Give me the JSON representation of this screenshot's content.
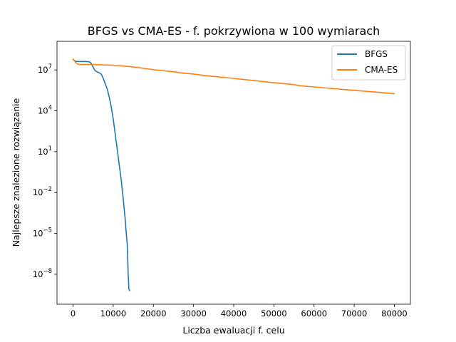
{
  "chart_data": {
    "type": "line",
    "title": "BFGS vs CMA-ES - f. pokrzywiona w 100 wymiarach",
    "xlabel": "Liczba ewaluacji f. celu",
    "ylabel": "Najlepsze znalezione rozwiązanie",
    "x_scale": "linear",
    "y_scale": "log",
    "xlim": [
      -4000,
      84000
    ],
    "ylim_log10": [
      -10.2,
      9.1
    ],
    "grid": false,
    "legend_position": "top-right",
    "x_ticks": [
      0,
      10000,
      20000,
      30000,
      40000,
      50000,
      60000,
      70000,
      80000
    ],
    "x_tick_labels": [
      "0",
      "10000",
      "20000",
      "30000",
      "40000",
      "50000",
      "60000",
      "70000",
      "80000"
    ],
    "y_ticks_log10": [
      7,
      4,
      1,
      -2,
      -5,
      -8
    ],
    "y_tick_labels": [
      {
        "base": "10",
        "exp": "7"
      },
      {
        "base": "10",
        "exp": "4"
      },
      {
        "base": "10",
        "exp": "1"
      },
      {
        "base": "10",
        "exp": "−2"
      },
      {
        "base": "10",
        "exp": "−5"
      },
      {
        "base": "10",
        "exp": "−8"
      }
    ],
    "series": [
      {
        "name": "BFGS",
        "color": "#1f77b4",
        "x": [
          0,
          500,
          1000,
          2000,
          3000,
          4000,
          4500,
          5000,
          5500,
          6000,
          6500,
          7000,
          7500,
          8000,
          8500,
          9000,
          9500,
          10000,
          10500,
          11000,
          11500,
          12000,
          12500,
          13000,
          13200,
          13500,
          13700,
          13900,
          14100
        ],
        "y_log10": [
          7.78,
          7.65,
          7.62,
          7.62,
          7.62,
          7.6,
          7.5,
          7.2,
          6.95,
          6.85,
          6.8,
          6.7,
          6.4,
          6.0,
          5.6,
          5.0,
          4.3,
          3.4,
          2.3,
          1.2,
          0.0,
          -1.1,
          -2.5,
          -4.0,
          -4.8,
          -5.8,
          -7.9,
          -9.1,
          -9.2
        ]
      },
      {
        "name": "CMA-ES",
        "color": "#ff7f0e",
        "x": [
          0,
          500,
          1000,
          1500,
          2000,
          3000,
          5000,
          7000,
          10000,
          12000,
          14000,
          16000,
          18000,
          20000,
          22000,
          24000,
          26000,
          28000,
          30000,
          32000,
          35000,
          40000,
          45000,
          50000,
          55000,
          57000,
          60000,
          65000,
          70000,
          75000,
          80000
        ],
        "y_log10": [
          7.8,
          7.6,
          7.45,
          7.4,
          7.4,
          7.4,
          7.4,
          7.38,
          7.35,
          7.3,
          7.25,
          7.18,
          7.1,
          7.02,
          6.96,
          6.9,
          6.82,
          6.75,
          6.7,
          6.62,
          6.52,
          6.38,
          6.22,
          6.06,
          5.92,
          5.82,
          5.75,
          5.62,
          5.5,
          5.38,
          5.25
        ]
      }
    ]
  }
}
